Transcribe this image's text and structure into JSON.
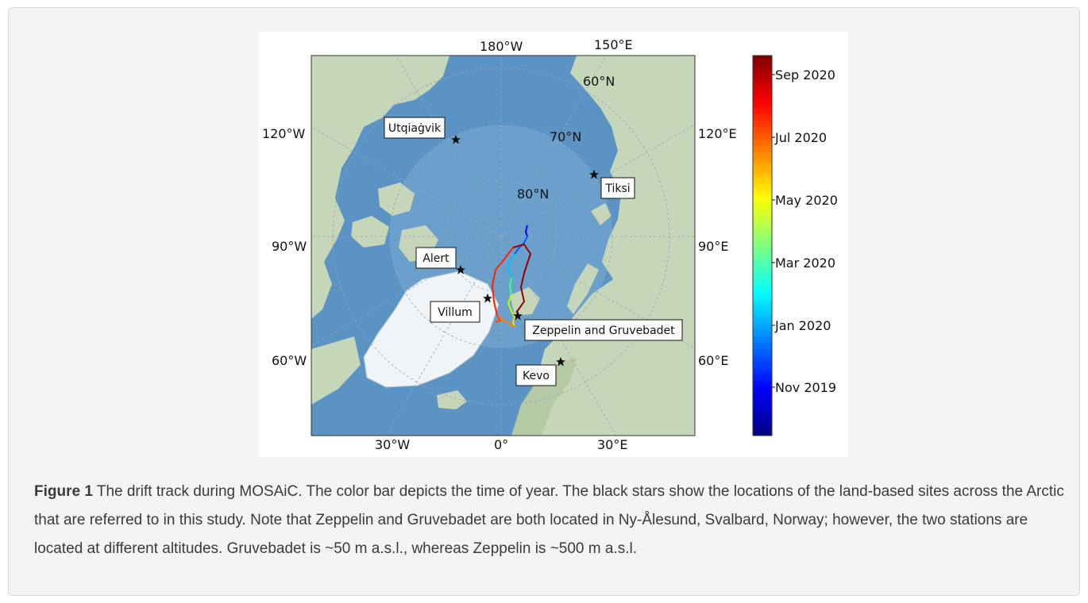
{
  "figure": {
    "number": "Figure 1",
    "caption": "The drift track during MOSAiC. The color bar depicts the time of year. The black stars show the locations of the land-based sites across the Arctic that are referred to in this study. Note that Zeppelin and Gruvebadet are both located in Ny-Ålesund, Svalbard, Norway; however, the two stations are located at different altitudes. Gruvebadet is ~50 m a.s.l., whereas Zeppelin is ~500 m a.s.l."
  },
  "map": {
    "projection": "north-polar-stereographic",
    "longitude_labels": [
      "180°W",
      "150°E",
      "120°W",
      "120°E",
      "90°W",
      "90°E",
      "60°W",
      "60°E",
      "30°W",
      "0°",
      "30°E"
    ],
    "latitude_labels": [
      "60°N",
      "70°N",
      "80°N"
    ],
    "sites": [
      {
        "name": "Utqiaġvik",
        "icon": "star-icon"
      },
      {
        "name": "Tiksi",
        "icon": "star-icon"
      },
      {
        "name": "Alert",
        "icon": "star-icon"
      },
      {
        "name": "Villum",
        "icon": "star-icon"
      },
      {
        "name": "Zeppelin and Gruvebadet",
        "icon": "star-icon"
      },
      {
        "name": "Kevo",
        "icon": "star-icon"
      }
    ],
    "colors": {
      "ocean": "#5b93c4",
      "land": "#c6d6b8",
      "ice": "#f1f4f6"
    }
  },
  "colorbar": {
    "labels": [
      "Sep 2020",
      "Jul 2020",
      "May 2020",
      "Mar 2020",
      "Jan 2020",
      "Nov 2019"
    ],
    "colormap": "jet"
  }
}
